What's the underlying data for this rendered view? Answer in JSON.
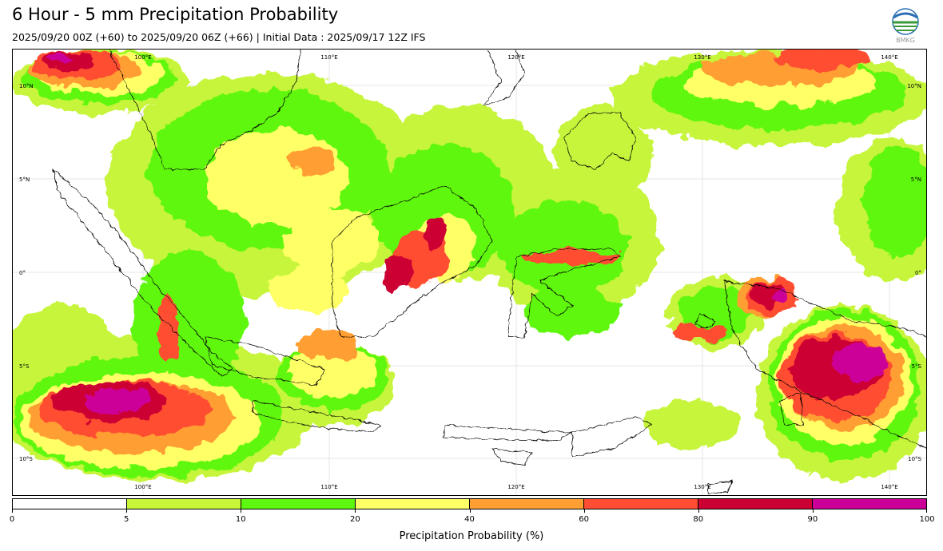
{
  "header": {
    "title": "6 Hour - 5 mm Precipitation Probability",
    "subtitle": "2025/09/20 00Z (+60) to 2025/09/20 06Z (+66) | Initial Data : 2025/09/17 12Z IFS",
    "logo_text": "BMKG"
  },
  "map": {
    "lon_labels_top": [
      "100°E",
      "110°E",
      "120°E",
      "130°E",
      "140°E"
    ],
    "lon_labels_bottom": [
      "100°E",
      "110°E",
      "120°E",
      "130°E",
      "140°E"
    ],
    "lat_labels_left": [
      "10°N",
      "5°N",
      "0°",
      "5°S",
      "10°S"
    ],
    "lat_labels_right": [
      "10°N",
      "5°N",
      "0°",
      "5°S",
      "10°S"
    ],
    "gridlines": true,
    "colors": {
      "coastline": "#000000",
      "gridline": "#e6e6e6"
    }
  },
  "colorbar": {
    "title": "Precipitation Probability (%)",
    "tick_labels": [
      "0",
      "5",
      "10",
      "20",
      "40",
      "60",
      "80",
      "90",
      "100"
    ],
    "segment_colors": [
      "#ffffff",
      "#c6f53a",
      "#5ef710",
      "#ffff66",
      "#ff9e33",
      "#ff4d33",
      "#cc0033",
      "#cc0099"
    ]
  }
}
